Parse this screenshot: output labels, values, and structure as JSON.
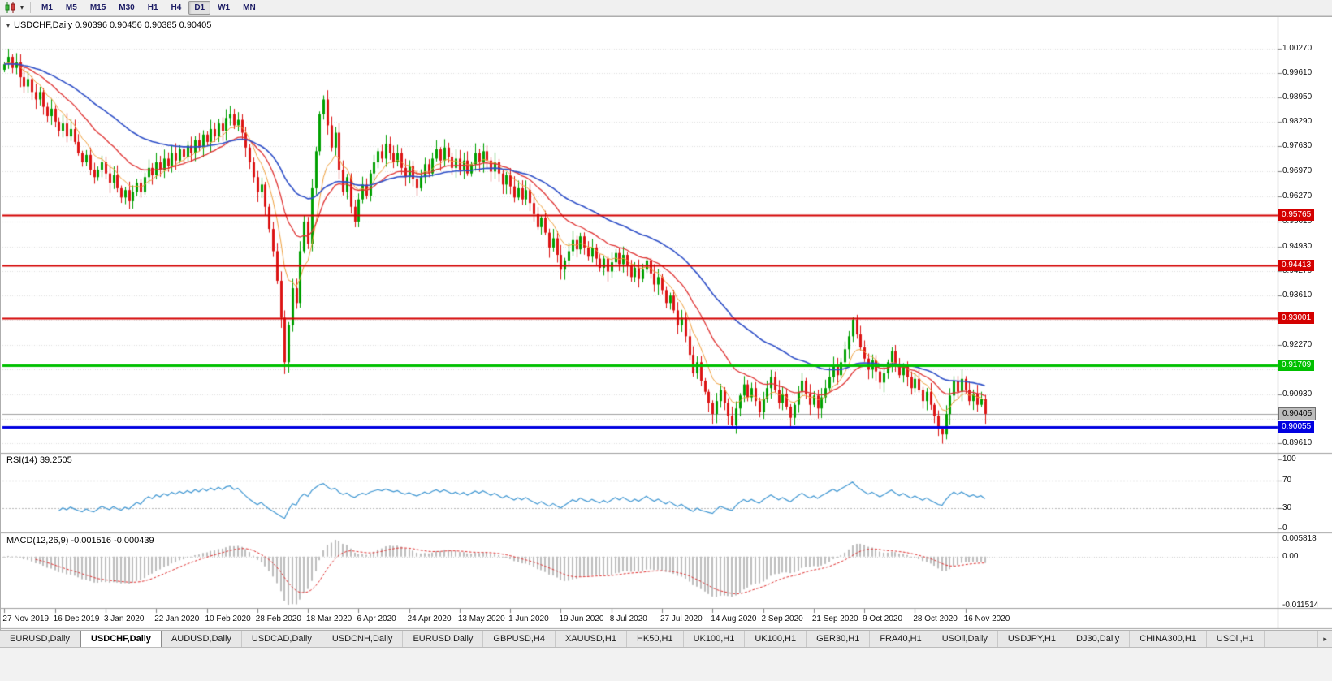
{
  "toolbar": {
    "chart_type_tooltip": "Candlesticks",
    "timeframes": [
      "M1",
      "M5",
      "M15",
      "M30",
      "H1",
      "H4",
      "D1",
      "W1",
      "MN"
    ],
    "active_timeframe": "D1"
  },
  "chart": {
    "title": "USDCHF,Daily 0.90396 0.90456 0.90385 0.90405",
    "symbol": "USDCHF",
    "period": "Daily",
    "open": "0.90396",
    "high": "0.90456",
    "low": "0.90385",
    "close": "0.90405"
  },
  "price_axis": {
    "ticks": [
      "1.00270",
      "0.99610",
      "0.98950",
      "0.98290",
      "0.97630",
      "0.96970",
      "0.96270",
      "0.95610",
      "0.94930",
      "0.94270",
      "0.93610",
      "0.92950",
      "0.92270",
      "0.91610",
      "0.90930",
      "0.90270",
      "0.89610"
    ]
  },
  "levels": [
    {
      "label": "0.95765",
      "value": 0.95765,
      "color": "#d40000",
      "width": 2
    },
    {
      "label": "0.94413",
      "value": 0.94413,
      "color": "#d40000",
      "width": 2
    },
    {
      "label": "0.93001",
      "value": 0.93001,
      "color": "#d40000",
      "width": 2
    },
    {
      "label": "0.91709",
      "value": 0.91709,
      "color": "#00c000",
      "width": 3
    },
    {
      "label": "0.90055",
      "value": 0.90055,
      "color": "#0000e0",
      "width": 3
    }
  ],
  "current_price": {
    "label": "0.90405",
    "value": 0.90405
  },
  "date_axis": [
    "27 Nov 2019",
    "16 Dec 2019",
    "3 Jan 2020",
    "22 Jan 2020",
    "10 Feb 2020",
    "28 Feb 2020",
    "18 Mar 2020",
    "6 Apr 2020",
    "24 Apr 2020",
    "13 May 2020",
    "1 Jun 2020",
    "19 Jun 2020",
    "8 Jul 2020",
    "27 Jul 2020",
    "14 Aug 2020",
    "2 Sep 2020",
    "21 Sep 2020",
    "9 Oct 2020",
    "28 Oct 2020",
    "16 Nov 2020"
  ],
  "rsi_panel": {
    "display": "RSI(14) 39.2505",
    "name": "RSI",
    "period": 14,
    "value": "39.2505",
    "axis_labels": [
      "100",
      "70",
      "30",
      "0"
    ],
    "upper_level": 70,
    "lower_level": 30
  },
  "macd_panel": {
    "display": "MACD(12,26,9) -0.001516 -0.000439",
    "macd_value": "-0.001516",
    "signal_value": "-0.000439",
    "axis_labels": [
      "0.005818",
      "0.00",
      "-0.011514"
    ]
  },
  "tabs": {
    "items": [
      {
        "label": "EURUSD,Daily",
        "active": false
      },
      {
        "label": "USDCHF,Daily",
        "active": true
      },
      {
        "label": "AUDUSD,Daily",
        "active": false
      },
      {
        "label": "USDCAD,Daily",
        "active": false
      },
      {
        "label": "USDCNH,Daily",
        "active": false
      },
      {
        "label": "EURUSD,Daily",
        "active": false
      },
      {
        "label": "GBPUSD,H4",
        "active": false
      },
      {
        "label": "XAUUSD,H1",
        "active": false
      },
      {
        "label": "HK50,H1",
        "active": false
      },
      {
        "label": "UK100,H1",
        "active": false
      },
      {
        "label": "UK100,H1",
        "active": false
      },
      {
        "label": "GER30,H1",
        "active": false
      },
      {
        "label": "FRA40,H1",
        "active": false
      },
      {
        "label": "USOil,Daily",
        "active": false
      },
      {
        "label": "USDJPY,H1",
        "active": false
      },
      {
        "label": "DJ30,Daily",
        "active": false
      },
      {
        "label": "CHINA300,H1",
        "active": false
      },
      {
        "label": "USOil,H1",
        "active": false
      }
    ]
  },
  "colors": {
    "up_candle": "#00a000",
    "down_candle": "#dc1414",
    "ma_fast": "#f0a03c",
    "ma_mid": "#e03232",
    "ma_slow": "#2e4fc8",
    "rsi_line": "#3e96d2",
    "macd_hist": "#bdbdbd",
    "macd_signal": "#e03232",
    "current_price_line": "#a0a0a0",
    "grid": "#dedede"
  },
  "chart_data": {
    "type": "candlestick",
    "symbol": "USDCHF",
    "timeframe": "D1",
    "ylim": [
      0.8935,
      1.0095
    ],
    "first_open": 0.997,
    "closes": [
      0.9985,
      1.0005,
      0.9975,
      0.999,
      0.995,
      0.9925,
      0.9945,
      0.991,
      0.989,
      0.991,
      0.987,
      0.9845,
      0.9865,
      0.983,
      0.9805,
      0.9825,
      0.979,
      0.981,
      0.9775,
      0.9745,
      0.972,
      0.974,
      0.97,
      0.968,
      0.97,
      0.972,
      0.969,
      0.9665,
      0.9685,
      0.965,
      0.9625,
      0.9645,
      0.9615,
      0.964,
      0.9665,
      0.964,
      0.968,
      0.9705,
      0.9685,
      0.972,
      0.97,
      0.973,
      0.971,
      0.9745,
      0.9725,
      0.9755,
      0.9735,
      0.9765,
      0.9745,
      0.978,
      0.976,
      0.9795,
      0.9775,
      0.981,
      0.979,
      0.9825,
      0.9805,
      0.984,
      0.985,
      0.982,
      0.9835,
      0.98,
      0.976,
      0.972,
      0.968,
      0.964,
      0.966,
      0.96,
      0.954,
      0.948,
      0.94,
      0.93,
      0.918,
      0.928,
      0.938,
      0.934,
      0.948,
      0.956,
      0.95,
      0.965,
      0.975,
      0.985,
      0.989,
      0.982,
      0.976,
      0.98,
      0.97,
      0.964,
      0.968,
      0.96,
      0.956,
      0.962,
      0.966,
      0.963,
      0.969,
      0.972,
      0.975,
      0.973,
      0.977,
      0.9745,
      0.972,
      0.9745,
      0.9705,
      0.968,
      0.971,
      0.9675,
      0.965,
      0.968,
      0.9715,
      0.969,
      0.973,
      0.9755,
      0.9725,
      0.976,
      0.9735,
      0.9705,
      0.973,
      0.97,
      0.9725,
      0.969,
      0.9715,
      0.9745,
      0.972,
      0.975,
      0.9725,
      0.9695,
      0.972,
      0.969,
      0.966,
      0.9685,
      0.9655,
      0.9625,
      0.965,
      0.962,
      0.9645,
      0.961,
      0.958,
      0.9545,
      0.957,
      0.953,
      0.949,
      0.9515,
      0.947,
      0.943,
      0.9455,
      0.948,
      0.951,
      0.9485,
      0.952,
      0.949,
      0.9465,
      0.949,
      0.946,
      0.9435,
      0.946,
      0.9425,
      0.945,
      0.9475,
      0.9445,
      0.947,
      0.944,
      0.941,
      0.9435,
      0.9405,
      0.943,
      0.9455,
      0.942,
      0.939,
      0.941,
      0.9375,
      0.934,
      0.936,
      0.932,
      0.928,
      0.93,
      0.925,
      0.92,
      0.915,
      0.918,
      0.913,
      0.91,
      0.907,
      0.904,
      0.9075,
      0.9105,
      0.907,
      0.9035,
      0.901,
      0.9055,
      0.909,
      0.912,
      0.9085,
      0.911,
      0.9075,
      0.9045,
      0.908,
      0.911,
      0.914,
      0.9105,
      0.907,
      0.9095,
      0.906,
      0.903,
      0.9065,
      0.91,
      0.913,
      0.9095,
      0.9065,
      0.909,
      0.9055,
      0.9085,
      0.911,
      0.914,
      0.917,
      0.9145,
      0.918,
      0.9215,
      0.925,
      0.9295,
      0.9255,
      0.922,
      0.919,
      0.916,
      0.9185,
      0.9155,
      0.9125,
      0.915,
      0.918,
      0.921,
      0.9175,
      0.9145,
      0.917,
      0.914,
      0.911,
      0.9135,
      0.9105,
      0.9075,
      0.91,
      0.9065,
      0.9035,
      0.9,
      0.8985,
      0.904,
      0.909,
      0.913,
      0.91,
      0.9135,
      0.9105,
      0.9075,
      0.9095,
      0.9065,
      0.908,
      0.90405
    ],
    "wick_high_overrides": {
      "1": 1.0027,
      "82": 0.9901
    },
    "wick_low_overrides": {
      "72": 0.9148,
      "241": 0.896
    },
    "labels_per_candles": 13,
    "indicators": {
      "rsi_period": 14,
      "macd": [
        12,
        26,
        9
      ],
      "ma_periods": [
        8,
        20,
        45
      ]
    }
  }
}
